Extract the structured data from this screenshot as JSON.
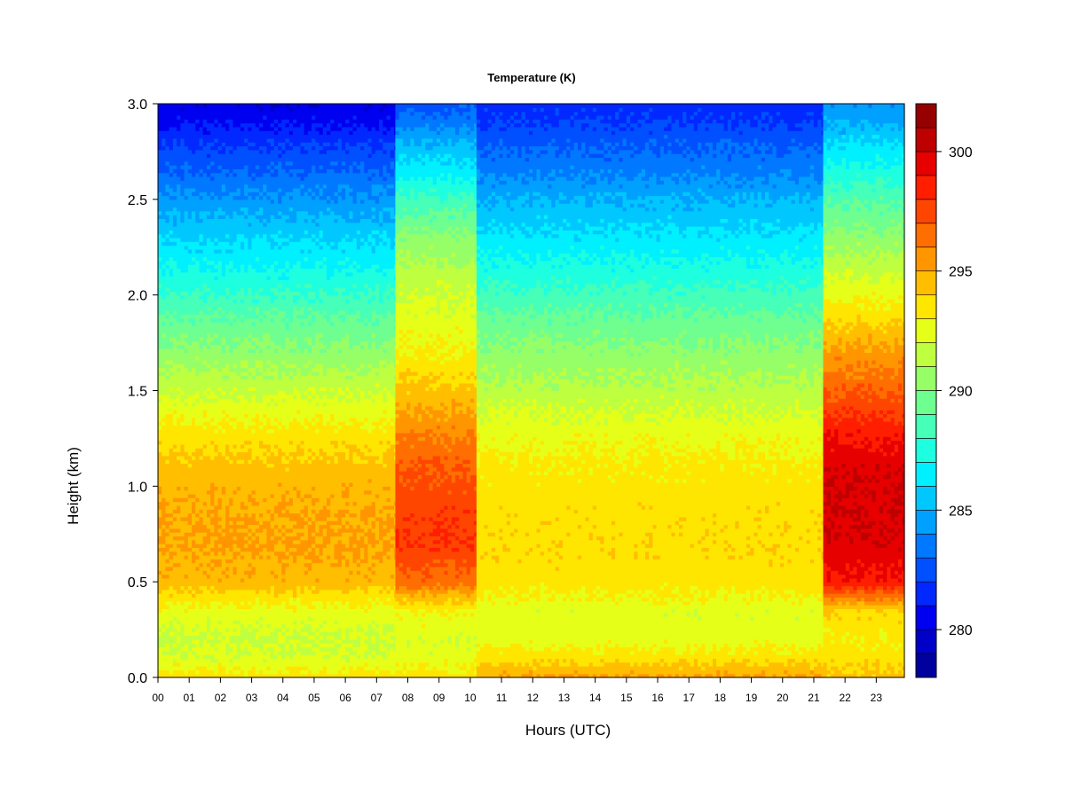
{
  "chart_data": {
    "type": "heatmap",
    "title": "Temperature (K)",
    "xlabel": "Hours (UTC)",
    "ylabel": "Height (km)",
    "x_ticks": [
      "00",
      "01",
      "02",
      "03",
      "04",
      "05",
      "06",
      "07",
      "08",
      "09",
      "10",
      "11",
      "12",
      "13",
      "14",
      "15",
      "16",
      "17",
      "18",
      "19",
      "20",
      "21",
      "22",
      "23"
    ],
    "y_ticks": [
      "0.0",
      "0.5",
      "1.0",
      "1.5",
      "2.0",
      "2.5",
      "3.0"
    ],
    "xlim": [
      0,
      23.9
    ],
    "ylim": [
      0,
      3.0
    ],
    "colorbar": {
      "ticks": [
        "280",
        "285",
        "290",
        "295",
        "300"
      ],
      "range": [
        278,
        302
      ],
      "levels": 24,
      "colors": [
        "#00007f",
        "#00009f",
        "#0000c8",
        "#0000f0",
        "#0028ff",
        "#0050ff",
        "#0078ff",
        "#00a0ff",
        "#00c8ff",
        "#00f0ff",
        "#1effe0",
        "#46ffb8",
        "#6eff90",
        "#96ff68",
        "#beff40",
        "#e6ff18",
        "#ffe600",
        "#ffbe00",
        "#ff9600",
        "#ff6e00",
        "#ff4600",
        "#ff1e00",
        "#e60000",
        "#be0000",
        "#960000",
        "#7f0000"
      ]
    },
    "surface_temperature_K": [
      {
        "hours": [
          0,
          7.6
        ],
        "values": [
          293.5,
          292.2,
          291.8,
          292.6,
          294.6,
          295.1,
          294.9,
          294.4,
          293.3,
          291.8,
          290.4,
          288.9,
          287.3,
          285.9,
          284.3,
          283.0,
          281.8,
          280.8,
          280.2
        ]
      },
      {
        "hours": [
          7.6,
          10.2
        ],
        "values": [
          293.5,
          292.5,
          292.2,
          293.0,
          296.5,
          298.0,
          297.6,
          297.0,
          295.7,
          294.3,
          293.1,
          292.3,
          291.5,
          290.3,
          288.3,
          286.5,
          285.0,
          283.5,
          282.6
        ]
      },
      {
        "hours": [
          10.2,
          21.3
        ],
        "values": [
          295.2,
          293.6,
          292.5,
          292.4,
          293.5,
          293.7,
          293.6,
          293.3,
          292.5,
          291.4,
          290.3,
          289.1,
          287.6,
          286.3,
          285.0,
          283.7,
          282.8,
          282.0,
          281.5
        ]
      },
      {
        "hours": [
          21.3,
          23.9
        ],
        "values": [
          294.3,
          293.6,
          293.1,
          293.9,
          298.8,
          299.8,
          300.0,
          299.8,
          298.6,
          296.9,
          295.4,
          293.6,
          291.9,
          290.4,
          288.8,
          287.4,
          286.0,
          284.8,
          284.3
        ]
      }
    ],
    "heights_km_of_values": [
      0.0,
      0.1,
      0.2,
      0.35,
      0.5,
      0.7,
      0.9,
      1.1,
      1.3,
      1.5,
      1.7,
      1.9,
      2.1,
      2.3,
      2.5,
      2.65,
      2.8,
      2.9,
      3.0
    ]
  }
}
